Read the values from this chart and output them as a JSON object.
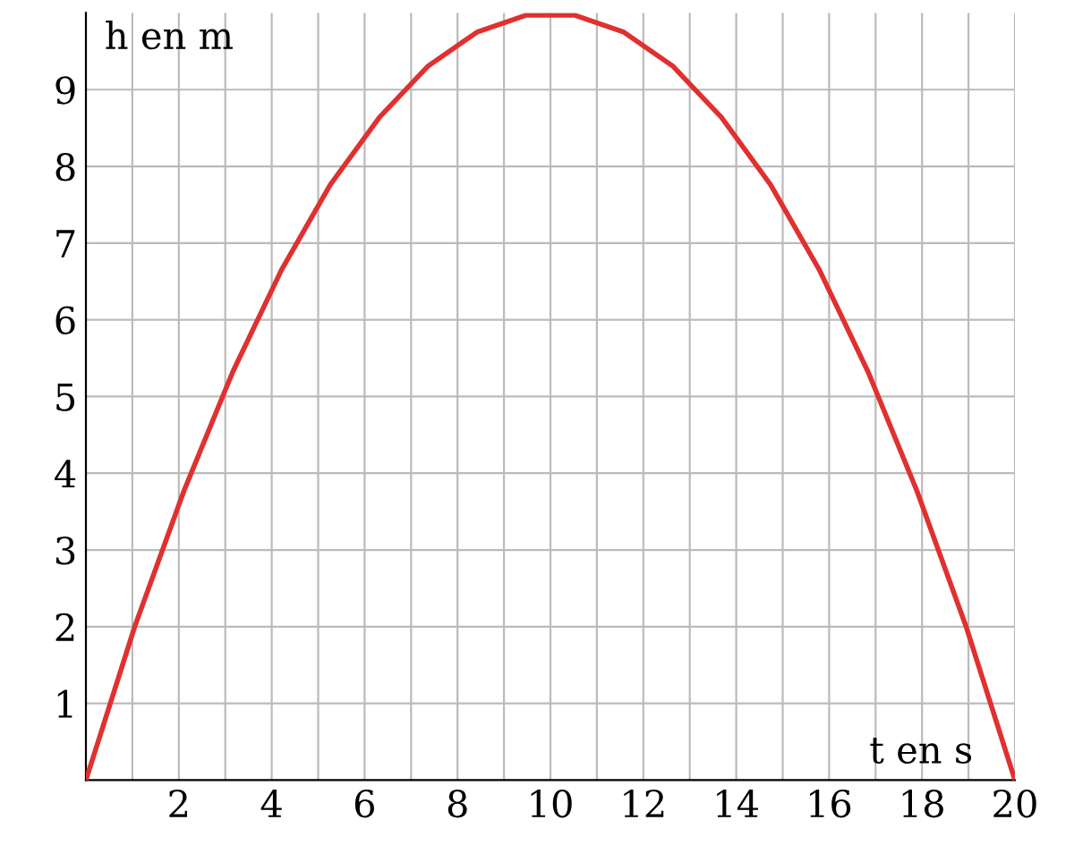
{
  "chart_data": {
    "type": "line",
    "xlabel": "t en s",
    "ylabel": "h en m",
    "x": [
      0,
      1.05,
      2.11,
      3.16,
      4.21,
      5.26,
      6.32,
      7.37,
      8.42,
      9.47,
      10.53,
      11.58,
      12.63,
      13.68,
      14.74,
      15.79,
      16.84,
      17.89,
      18.95,
      20
    ],
    "series": [
      {
        "color": "#e03030",
        "values": [
          0,
          2.0,
          3.77,
          5.32,
          6.65,
          7.76,
          8.64,
          9.31,
          9.75,
          9.97,
          9.97,
          9.75,
          9.31,
          8.64,
          7.76,
          6.65,
          5.32,
          3.77,
          2.0,
          0
        ]
      }
    ],
    "xlim": [
      0,
      20
    ],
    "ylim": [
      0,
      10
    ],
    "xticks": [
      {
        "value": 1,
        "label": null
      },
      2,
      {
        "value": 3,
        "label": null
      },
      4,
      {
        "value": 5,
        "label": null
      },
      6,
      {
        "value": 7,
        "label": null
      },
      8,
      {
        "value": 9,
        "label": null
      },
      10,
      {
        "value": 11,
        "label": null
      },
      12,
      {
        "value": 13,
        "label": null
      },
      14,
      {
        "value": 15,
        "label": null
      },
      16,
      {
        "value": 17,
        "label": null
      },
      18,
      {
        "value": 19,
        "label": null
      },
      20
    ],
    "yticks": [
      1,
      2,
      3,
      4,
      5,
      6,
      7,
      8,
      9
    ],
    "grid": true,
    "marker": "none",
    "line_style": "solid"
  }
}
